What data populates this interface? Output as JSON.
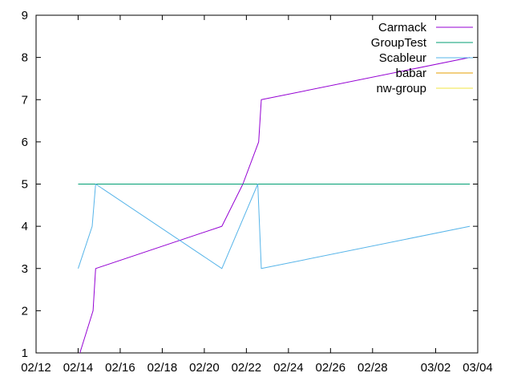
{
  "chart_data": {
    "type": "line",
    "title": "",
    "xlabel": "",
    "ylabel": "",
    "x_format": "MM/DD",
    "xlim": [
      "2024-02-12",
      "2024-03-04"
    ],
    "ylim": [
      1,
      9
    ],
    "x_ticks": [
      {
        "date": "2024-02-12",
        "label": "02/12"
      },
      {
        "date": "2024-02-14",
        "label": "02/14"
      },
      {
        "date": "2024-02-16",
        "label": "02/16"
      },
      {
        "date": "2024-02-18",
        "label": "02/18"
      },
      {
        "date": "2024-02-20",
        "label": "02/20"
      },
      {
        "date": "2024-02-22",
        "label": "02/22"
      },
      {
        "date": "2024-02-24",
        "label": "02/24"
      },
      {
        "date": "2024-02-26",
        "label": "02/26"
      },
      {
        "date": "2024-02-28",
        "label": "02/28"
      },
      {
        "date": "2024-03-02",
        "label": "03/02"
      },
      {
        "date": "2024-03-04",
        "label": "03/04"
      }
    ],
    "y_ticks": [
      1,
      2,
      3,
      4,
      5,
      6,
      7,
      8,
      9
    ],
    "grid": false,
    "legend_position": "top-right",
    "series": [
      {
        "name": "Carmack",
        "color": "#9400d3",
        "points": [
          {
            "x": "2024-02-14T02:00",
            "y": 1
          },
          {
            "x": "2024-02-14T17:00",
            "y": 2
          },
          {
            "x": "2024-02-14T20:00",
            "y": 3
          },
          {
            "x": "2024-02-20T20:00",
            "y": 4
          },
          {
            "x": "2024-02-21T20:00",
            "y": 5
          },
          {
            "x": "2024-02-22T14:00",
            "y": 6
          },
          {
            "x": "2024-02-22T17:00",
            "y": 7
          },
          {
            "x": "2024-03-03T15:00",
            "y": 8
          }
        ]
      },
      {
        "name": "GroupTest",
        "color": "#009e73",
        "points": [
          {
            "x": "2024-02-14T00:00",
            "y": 5
          },
          {
            "x": "2024-03-03T15:00",
            "y": 5
          }
        ]
      },
      {
        "name": "Scableur",
        "color": "#56b4e9",
        "points": [
          {
            "x": "2024-02-14T00:00",
            "y": 3
          },
          {
            "x": "2024-02-14T16:00",
            "y": 4
          },
          {
            "x": "2024-02-14T20:00",
            "y": 5
          },
          {
            "x": "2024-02-20T20:00",
            "y": 3
          },
          {
            "x": "2024-02-22T13:00",
            "y": 5
          },
          {
            "x": "2024-02-22T17:00",
            "y": 3
          },
          {
            "x": "2024-03-03T15:00",
            "y": 4
          }
        ]
      },
      {
        "name": "babar",
        "color": "#e69f00",
        "points": []
      },
      {
        "name": "nw-group",
        "color": "#f0e442",
        "points": []
      }
    ]
  }
}
